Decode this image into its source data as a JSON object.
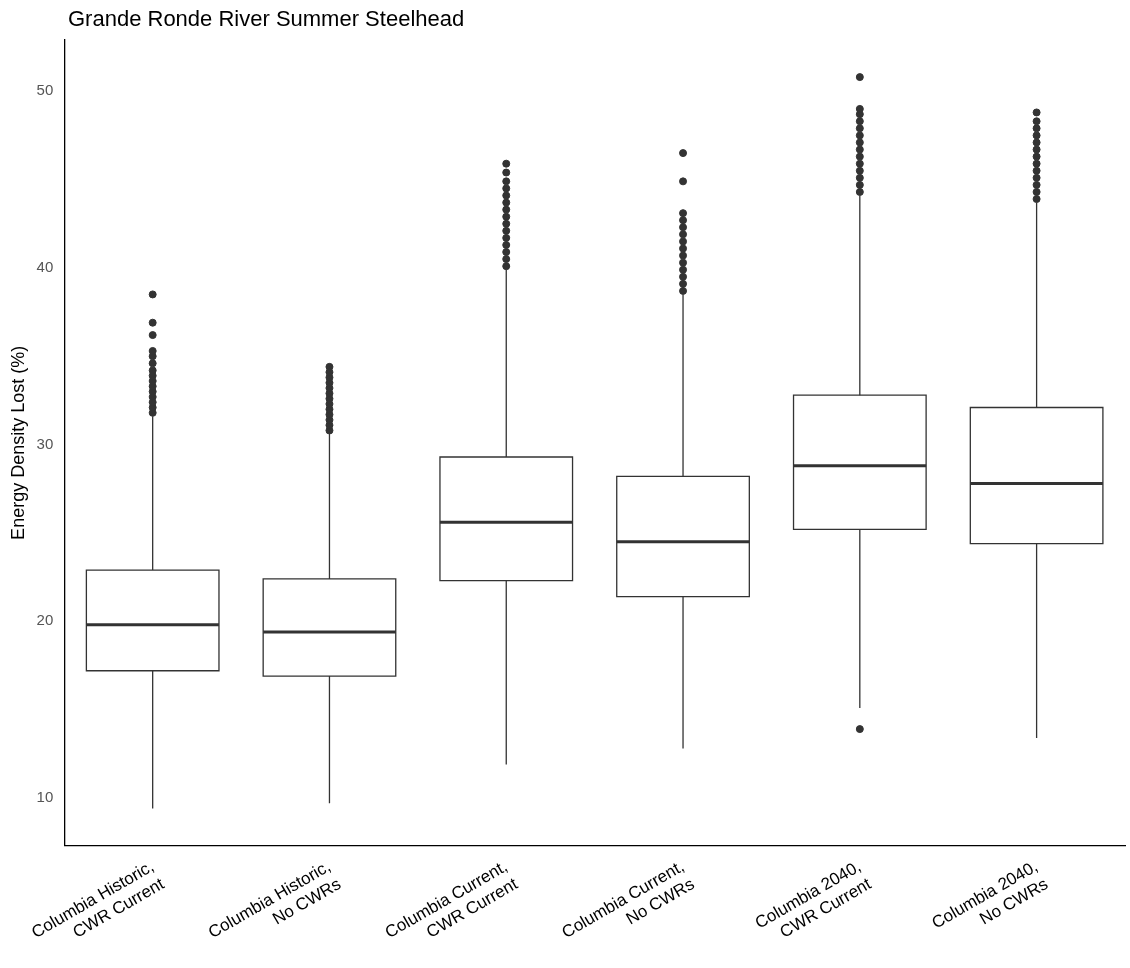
{
  "chart_data": {
    "type": "box",
    "title": "Grande Ronde River Summer Steelhead",
    "ylabel": "Energy Density Lost (%)",
    "categories": [
      "Columbia Historic,\nCWR Current",
      "Columbia Historic,\nNo CWRs",
      "Columbia Current,\nCWR Current",
      "Columbia Current,\nNo CWRs",
      "Columbia 2040,\nCWR Current",
      "Columbia 2040,\nNo CWRs"
    ],
    "boxes": [
      {
        "low": 9.4,
        "q1": 17.2,
        "median": 19.8,
        "q3": 22.9,
        "high": 31.6,
        "outliers": [
          31.8,
          32.1,
          32.4,
          32.7,
          33.0,
          33.3,
          33.6,
          33.9,
          34.2,
          34.6,
          35.0,
          35.3,
          36.2,
          36.9,
          38.5
        ]
      },
      {
        "low": 9.7,
        "q1": 16.9,
        "median": 19.4,
        "q3": 22.4,
        "high": 30.6,
        "outliers": [
          30.8,
          31.1,
          31.4,
          31.7,
          32.0,
          32.3,
          32.6,
          32.9,
          33.2,
          33.5,
          33.8,
          34.1,
          34.4
        ]
      },
      {
        "low": 11.9,
        "q1": 22.3,
        "median": 25.6,
        "q3": 29.3,
        "high": 39.9,
        "outliers": [
          40.1,
          40.5,
          40.9,
          41.3,
          41.7,
          42.1,
          42.5,
          42.9,
          43.3,
          43.7,
          44.1,
          44.5,
          44.9,
          45.4,
          45.9
        ]
      },
      {
        "low": 12.8,
        "q1": 21.4,
        "median": 24.5,
        "q3": 28.2,
        "high": 38.5,
        "outliers": [
          38.7,
          39.1,
          39.5,
          39.9,
          40.3,
          40.7,
          41.1,
          41.5,
          41.9,
          42.3,
          42.7,
          43.1,
          44.9,
          46.5
        ]
      },
      {
        "low": 15.1,
        "q1": 25.2,
        "median": 28.8,
        "q3": 32.8,
        "high": 44.1,
        "outliers": [
          13.9,
          44.3,
          44.7,
          45.1,
          45.5,
          45.9,
          46.3,
          46.7,
          47.1,
          47.5,
          47.9,
          48.3,
          48.7,
          49.0,
          50.8
        ]
      },
      {
        "low": 13.4,
        "q1": 24.4,
        "median": 27.8,
        "q3": 32.1,
        "high": 43.7,
        "outliers": [
          43.9,
          44.3,
          44.7,
          45.1,
          45.5,
          45.9,
          46.3,
          46.7,
          47.1,
          47.5,
          47.9,
          48.3,
          48.8
        ]
      }
    ],
    "color": "#333333",
    "ylim": [
      7.3,
      52.9
    ],
    "yticks": [
      10,
      20,
      30,
      40,
      50
    ],
    "grid": false,
    "legend": false,
    "marker": "circle"
  }
}
